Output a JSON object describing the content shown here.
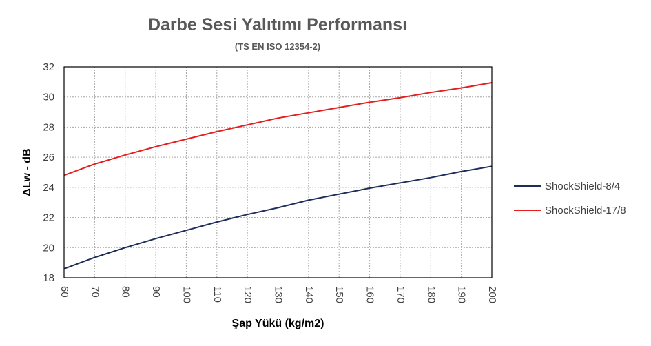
{
  "chart_data": {
    "type": "line",
    "title": "Darbe Sesi Yalıtımı Performansı",
    "subtitle": "(TS EN ISO 12354-2)",
    "xlabel": "Şap Yükü (kg/m2)",
    "ylabel": "ΔLw - dB",
    "x": [
      60,
      70,
      80,
      90,
      100,
      110,
      120,
      130,
      140,
      150,
      160,
      170,
      180,
      190,
      200
    ],
    "xlim": [
      60,
      200
    ],
    "ylim": [
      18,
      32
    ],
    "yticks": [
      18,
      20,
      22,
      24,
      26,
      28,
      30,
      32
    ],
    "grid": true,
    "legend_position": "right",
    "series": [
      {
        "name": "ShockShield-8/4",
        "color": "#1F2D5A",
        "values": [
          18.6,
          19.35,
          20.0,
          20.6,
          21.15,
          21.7,
          22.2,
          22.65,
          23.15,
          23.55,
          23.95,
          24.3,
          24.65,
          25.05,
          25.4
        ]
      },
      {
        "name": "ShockShield-17/8",
        "color": "#E41E1E",
        "values": [
          24.8,
          25.55,
          26.15,
          26.7,
          27.2,
          27.7,
          28.15,
          28.6,
          28.95,
          29.3,
          29.65,
          29.95,
          30.3,
          30.6,
          30.95
        ]
      }
    ]
  }
}
